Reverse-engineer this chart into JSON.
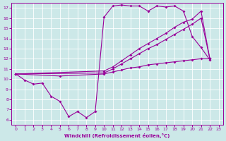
{
  "xlabel": "Windchill (Refroidissement éolien,°C)",
  "xlim": [
    -0.5,
    23.5
  ],
  "ylim": [
    5.5,
    17.5
  ],
  "yticks": [
    6,
    7,
    8,
    9,
    10,
    11,
    12,
    13,
    14,
    15,
    16,
    17
  ],
  "xticks": [
    0,
    1,
    2,
    3,
    4,
    5,
    6,
    7,
    8,
    9,
    10,
    11,
    12,
    13,
    14,
    15,
    16,
    17,
    18,
    19,
    20,
    21,
    22,
    23
  ],
  "bg_color": "#cce8e8",
  "line_color": "#990099",
  "grid_color": "#ffffff",
  "curve1_x": [
    0,
    1,
    2,
    3,
    4,
    5,
    6,
    7,
    8,
    9,
    10,
    11,
    12,
    13,
    14,
    15,
    16,
    17,
    18,
    19,
    20,
    21,
    22
  ],
  "curve1_y": [
    10.5,
    9.9,
    9.5,
    9.6,
    8.3,
    7.8,
    6.3,
    6.8,
    6.2,
    6.8,
    16.1,
    17.2,
    17.3,
    17.2,
    17.2,
    16.7,
    17.2,
    17.1,
    17.2,
    16.7,
    14.2,
    13.1,
    11.9
  ],
  "curve2_x": [
    0,
    10,
    11,
    12,
    13,
    14,
    15,
    16,
    17,
    18,
    19,
    20,
    21,
    22
  ],
  "curve2_y": [
    10.5,
    10.8,
    11.2,
    11.8,
    12.4,
    13.0,
    13.5,
    14.0,
    14.5,
    15.1,
    15.6,
    15.9,
    16.7,
    12.0
  ],
  "curve3_x": [
    0,
    10,
    11,
    12,
    13,
    14,
    15,
    16,
    17,
    18,
    19,
    20,
    21,
    22
  ],
  "curve3_y": [
    10.5,
    10.6,
    11.0,
    11.5,
    12.0,
    12.5,
    13.0,
    13.4,
    13.9,
    14.4,
    14.9,
    15.4,
    16.0,
    12.0
  ],
  "curve4_x": [
    0,
    5,
    10,
    11,
    12,
    13,
    14,
    15,
    16,
    17,
    18,
    19,
    20,
    21,
    22
  ],
  "curve4_y": [
    10.5,
    10.3,
    10.5,
    10.7,
    10.9,
    11.1,
    11.2,
    11.4,
    11.5,
    11.6,
    11.7,
    11.8,
    11.9,
    12.0,
    12.0
  ]
}
